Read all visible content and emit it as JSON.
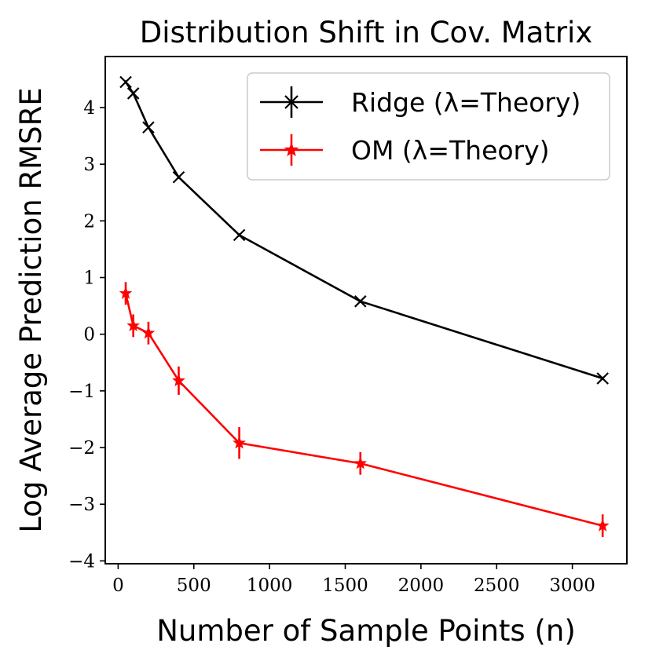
{
  "chart_data": {
    "type": "line",
    "title": "Distribution Shift in Cov. Matrix",
    "xlabel": "Number of Sample Points (n)",
    "ylabel": "Log Average Prediction RMSRE",
    "xlim": [
      -85,
      3360
    ],
    "ylim": [
      -4.05,
      4.9
    ],
    "xticks": [
      0,
      500,
      1000,
      1500,
      2000,
      2500,
      3000
    ],
    "yticks": [
      -4,
      -3,
      -2,
      -1,
      0,
      1,
      2,
      3,
      4
    ],
    "xtick_labels": [
      "0",
      "500",
      "1000",
      "1500",
      "2000",
      "2500",
      "3000"
    ],
    "ytick_labels": [
      "−4",
      "−3",
      "−2",
      "−1",
      "0",
      "1",
      "2",
      "3",
      "4"
    ],
    "grid": false,
    "legend_position": "top-right",
    "x": [
      50,
      100,
      200,
      400,
      800,
      1600,
      3200
    ],
    "series": [
      {
        "name": "Ridge (λ=Theory)",
        "color": "#000000",
        "marker": "x",
        "values": [
          4.45,
          4.25,
          3.65,
          2.77,
          1.75,
          0.58,
          -0.78
        ],
        "errors": [
          0.03,
          0.03,
          0.03,
          0.03,
          0.03,
          0.03,
          0.03
        ]
      },
      {
        "name": "OM (λ=Theory)",
        "color": "#ff0000",
        "marker": "*",
        "values": [
          0.72,
          0.15,
          0.02,
          -0.82,
          -1.92,
          -2.28,
          -3.38
        ],
        "errors": [
          0.2,
          0.2,
          0.2,
          0.25,
          0.28,
          0.2,
          0.2
        ]
      }
    ]
  }
}
